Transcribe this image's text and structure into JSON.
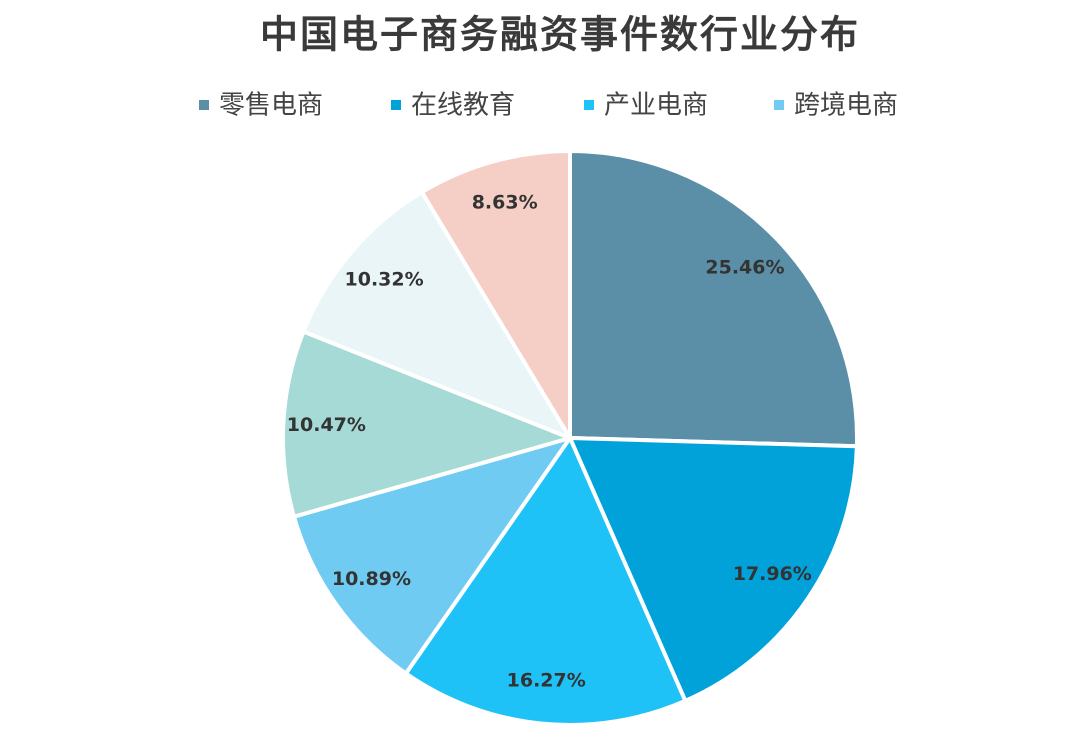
{
  "chart_data": {
    "type": "pie",
    "title": "中国电子商务融资事件数行业分布",
    "categories": [
      "零售电商",
      "在线教育",
      "产业电商",
      "跨境电商",
      null,
      null,
      null
    ],
    "values": [
      25.46,
      17.96,
      16.27,
      10.89,
      10.47,
      10.32,
      8.63
    ],
    "value_labels": [
      "25.46%",
      "17.96%",
      "16.27%",
      "10.89%",
      "10.47%",
      "10.32%",
      "8.63%"
    ],
    "colors": [
      "#5b8fa8",
      "#00a2d9",
      "#1fc2f7",
      "#6fcbf2",
      "#a6dad6",
      "#e9f5f7",
      "#f5cfc6"
    ],
    "legend": "top"
  }
}
